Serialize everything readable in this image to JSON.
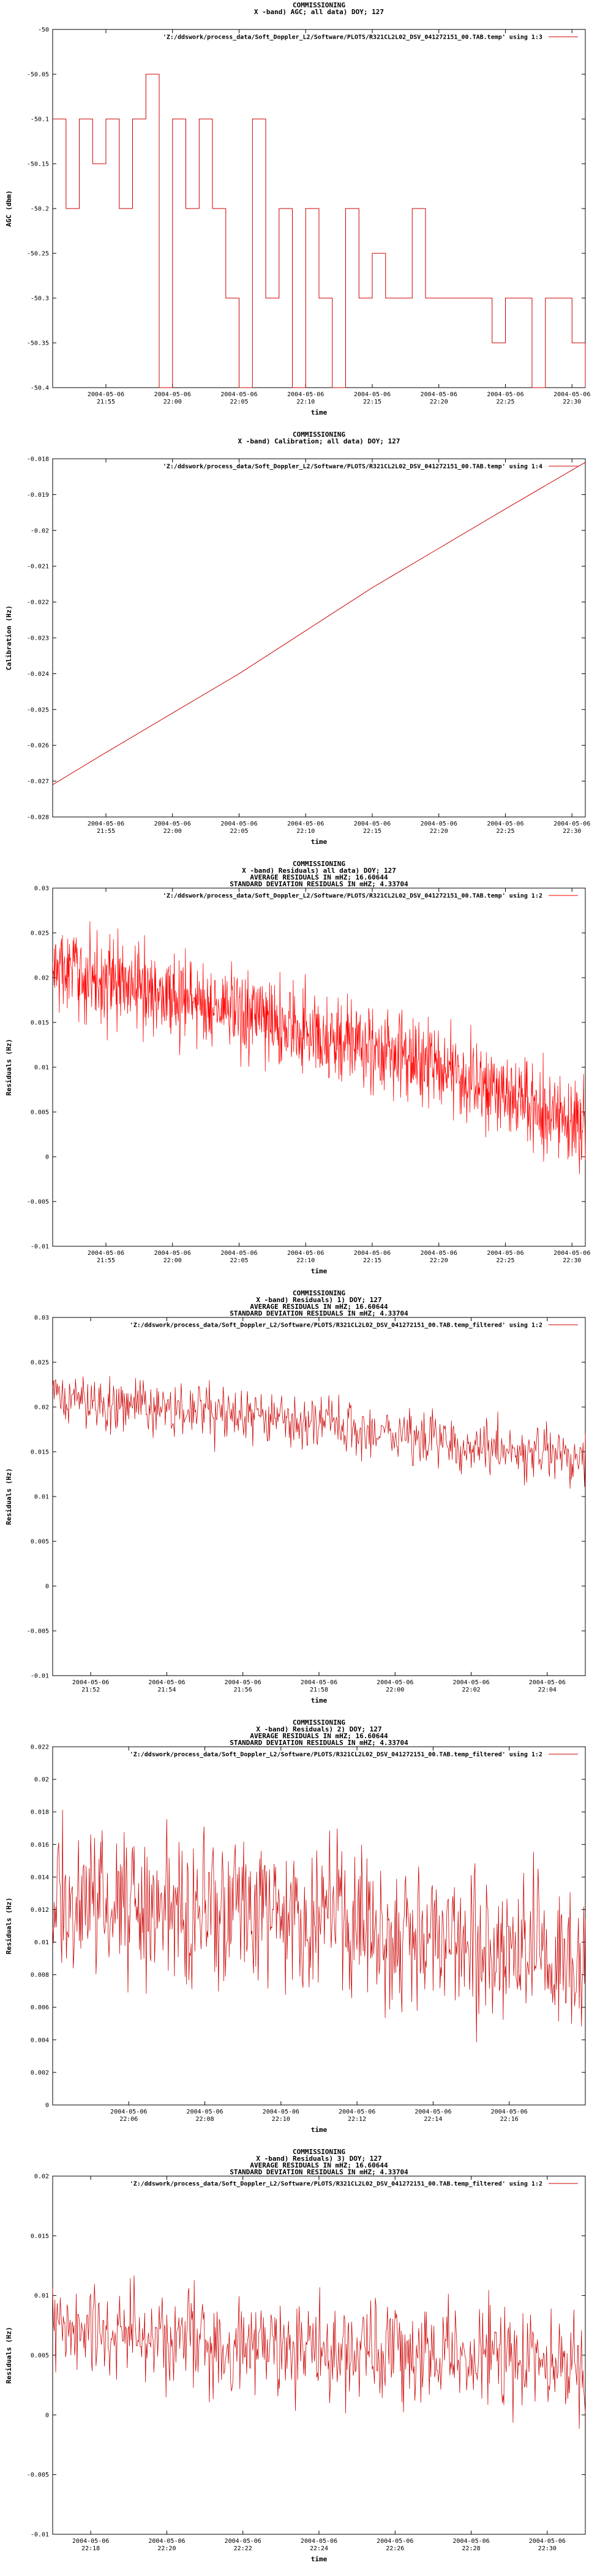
{
  "chart_data": [
    {
      "type": "line",
      "title": [
        "COMMISSIONING",
        "X -band) AGC; all data) DOY; 127"
      ],
      "xlabel": "time",
      "ylabel": "AGC (dbm)",
      "ylim": [
        -50.4,
        -50
      ],
      "yticks": [
        "-50",
        "-50.05",
        "-50.1",
        "-50.15",
        "-50.2",
        "-50.25",
        "-50.3",
        "-50.35",
        "-50.4"
      ],
      "xlim": [
        "2004-05-06 21:51",
        "2004-05-06 22:31"
      ],
      "xticks": [
        {
          "t": "2004-05-06 21:55",
          "l1": "2004-05-06",
          "l2": "21:55"
        },
        {
          "t": "2004-05-06 22:00",
          "l1": "2004-05-06",
          "l2": "22:00"
        },
        {
          "t": "2004-05-06 22:05",
          "l1": "2004-05-06",
          "l2": "22:05"
        },
        {
          "t": "2004-05-06 22:10",
          "l1": "2004-05-06",
          "l2": "22:10"
        },
        {
          "t": "2004-05-06 22:15",
          "l1": "2004-05-06",
          "l2": "22:15"
        },
        {
          "t": "2004-05-06 22:20",
          "l1": "2004-05-06",
          "l2": "22:20"
        },
        {
          "t": "2004-05-06 22:25",
          "l1": "2004-05-06",
          "l2": "22:25"
        },
        {
          "t": "2004-05-06 22:30",
          "l1": "2004-05-06",
          "l2": "22:30"
        }
      ],
      "series": [
        {
          "name": "'Z:/ddswork/process_data/Soft_Doppler_L2/Software/PLOTS/R321CL2L02_DSV_041272151_00.TAB.temp' using 1:3",
          "color": "#cc0000",
          "step": true,
          "x": [
            "2004-05-06 21:51",
            "2004-05-06 21:52",
            "2004-05-06 21:53",
            "2004-05-06 21:54",
            "2004-05-06 21:55",
            "2004-05-06 21:56",
            "2004-05-06 21:57",
            "2004-05-06 21:58",
            "2004-05-06 21:59",
            "2004-05-06 22:00",
            "2004-05-06 22:01",
            "2004-05-06 22:02",
            "2004-05-06 22:03",
            "2004-05-06 22:04",
            "2004-05-06 22:05",
            "2004-05-06 22:06",
            "2004-05-06 22:07",
            "2004-05-06 22:08",
            "2004-05-06 22:09",
            "2004-05-06 22:10",
            "2004-05-06 22:11",
            "2004-05-06 22:12",
            "2004-05-06 22:13",
            "2004-05-06 22:14",
            "2004-05-06 22:15",
            "2004-05-06 22:16",
            "2004-05-06 22:17",
            "2004-05-06 22:18",
            "2004-05-06 22:19",
            "2004-05-06 22:20",
            "2004-05-06 22:21",
            "2004-05-06 22:22",
            "2004-05-06 22:23",
            "2004-05-06 22:24",
            "2004-05-06 22:25",
            "2004-05-06 22:26",
            "2004-05-06 22:27",
            "2004-05-06 22:28",
            "2004-05-06 22:29",
            "2004-05-06 22:30",
            "2004-05-06 22:31"
          ],
          "y": [
            -50.1,
            -50.2,
            -50.1,
            -50.15,
            -50.1,
            -50.2,
            -50.1,
            -50.05,
            -50.4,
            -50.1,
            -50.2,
            -50.1,
            -50.2,
            -50.3,
            -50.4,
            -50.1,
            -50.3,
            -50.2,
            -50.4,
            -50.2,
            -50.3,
            -50.4,
            -50.2,
            -50.3,
            -50.25,
            -50.3,
            -50.3,
            -50.2,
            -50.3,
            -50.3,
            -50.3,
            -50.3,
            -50.3,
            -50.35,
            -50.3,
            -50.3,
            -50.4,
            -50.3,
            -50.3,
            -50.35,
            -50.4
          ]
        }
      ]
    },
    {
      "type": "line",
      "title": [
        "COMMISSIONING",
        "X -band) Calibration; all data) DOY; 127"
      ],
      "xlabel": "time",
      "ylabel": "Calibration (Hz)",
      "ylim": [
        -0.028,
        -0.018
      ],
      "yticks": [
        "-0.018",
        "-0.019",
        "-0.02",
        "-0.021",
        "-0.022",
        "-0.023",
        "-0.024",
        "-0.025",
        "-0.026",
        "-0.027",
        "-0.028"
      ],
      "xlim": [
        "2004-05-06 21:51",
        "2004-05-06 22:31"
      ],
      "xticks": [
        {
          "t": "2004-05-06 21:55",
          "l1": "2004-05-06",
          "l2": "21:55"
        },
        {
          "t": "2004-05-06 22:00",
          "l1": "2004-05-06",
          "l2": "22:00"
        },
        {
          "t": "2004-05-06 22:05",
          "l1": "2004-05-06",
          "l2": "22:05"
        },
        {
          "t": "2004-05-06 22:10",
          "l1": "2004-05-06",
          "l2": "22:10"
        },
        {
          "t": "2004-05-06 22:15",
          "l1": "2004-05-06",
          "l2": "22:15"
        },
        {
          "t": "2004-05-06 22:20",
          "l1": "2004-05-06",
          "l2": "22:20"
        },
        {
          "t": "2004-05-06 22:25",
          "l1": "2004-05-06",
          "l2": "22:25"
        },
        {
          "t": "2004-05-06 22:30",
          "l1": "2004-05-06",
          "l2": "22:30"
        }
      ],
      "series": [
        {
          "name": "'Z:/ddswork/process_data/Soft_Doppler_L2/Software/PLOTS/R321CL2L02_DSV_041272151_00.TAB.temp' using 1:4",
          "color": "#cc0000",
          "step": false,
          "x": [
            "2004-05-06 21:51",
            "2004-05-06 21:55",
            "2004-05-06 22:00",
            "2004-05-06 22:05",
            "2004-05-06 22:10",
            "2004-05-06 22:15",
            "2004-05-06 22:20",
            "2004-05-06 22:25",
            "2004-05-06 22:31"
          ],
          "y": [
            -0.0271,
            -0.0262,
            -0.0251,
            -0.024,
            -0.0228,
            -0.0216,
            -0.0205,
            -0.0194,
            -0.0181
          ]
        }
      ]
    },
    {
      "type": "line",
      "title": [
        "COMMISSIONING",
        "X -band) Residuals) all data) DOY; 127",
        "AVERAGE RESIDUALS IN mHZ; 16.60644",
        "STANDARD DEVIATION RESIDUALS IN mHZ; 4.33704"
      ],
      "xlabel": "time",
      "ylabel": "Residuals (Hz)",
      "ylim": [
        -0.01,
        0.03
      ],
      "yticks": [
        "0.03",
        "0.025",
        "0.02",
        "0.015",
        "0.01",
        "0.005",
        "0",
        "-0.005",
        "-0.01"
      ],
      "xlim": [
        "2004-05-06 21:51",
        "2004-05-06 22:31"
      ],
      "xticks": [
        {
          "t": "2004-05-06 21:55",
          "l1": "2004-05-06",
          "l2": "21:55"
        },
        {
          "t": "2004-05-06 22:00",
          "l1": "2004-05-06",
          "l2": "22:00"
        },
        {
          "t": "2004-05-06 22:05",
          "l1": "2004-05-06",
          "l2": "22:05"
        },
        {
          "t": "2004-05-06 22:10",
          "l1": "2004-05-06",
          "l2": "22:10"
        },
        {
          "t": "2004-05-06 22:15",
          "l1": "2004-05-06",
          "l2": "22:15"
        },
        {
          "t": "2004-05-06 22:20",
          "l1": "2004-05-06",
          "l2": "22:20"
        },
        {
          "t": "2004-05-06 22:25",
          "l1": "2004-05-06",
          "l2": "22:25"
        },
        {
          "t": "2004-05-06 22:30",
          "l1": "2004-05-06",
          "l2": "22:30"
        }
      ],
      "series": [
        {
          "name": "'Z:/ddswork/process_data/Soft_Doppler_L2/Software/PLOTS/R321CL2L02_DSV_041272151_00.TAB.temp' using 1:2",
          "color": "#ff0000",
          "noise": true,
          "samples": 1200,
          "spread": 0.0045,
          "x": [
            "2004-05-06 21:51",
            "2004-05-06 22:00",
            "2004-05-06 22:10",
            "2004-05-06 22:20",
            "2004-05-06 22:31"
          ],
          "y": [
            0.021,
            0.018,
            0.014,
            0.01,
            0.003
          ]
        }
      ]
    },
    {
      "type": "line",
      "title": [
        "COMMISSIONING",
        "X -band) Residuals) 1) DOY; 127",
        "AVERAGE RESIDUALS IN mHZ; 16.60644",
        "STANDARD DEVIATION RESIDUALS IN mHZ; 4.33704"
      ],
      "xlabel": "time",
      "ylabel": "Residuals (Hz)",
      "ylim": [
        -0.01,
        0.03
      ],
      "yticks": [
        "0.03",
        "0.025",
        "0.02",
        "0.015",
        "0.01",
        "0.005",
        "0",
        "-0.005",
        "-0.01"
      ],
      "xlim": [
        "2004-05-06 21:51",
        "2004-05-06 22:05"
      ],
      "xticks": [
        {
          "t": "2004-05-06 21:52",
          "l1": "2004-05-06",
          "l2": "21:52"
        },
        {
          "t": "2004-05-06 21:54",
          "l1": "2004-05-06",
          "l2": "21:54"
        },
        {
          "t": "2004-05-06 21:56",
          "l1": "2004-05-06",
          "l2": "21:56"
        },
        {
          "t": "2004-05-06 21:58",
          "l1": "2004-05-06",
          "l2": "21:58"
        },
        {
          "t": "2004-05-06 22:00",
          "l1": "2004-05-06",
          "l2": "22:00"
        },
        {
          "t": "2004-05-06 22:02",
          "l1": "2004-05-06",
          "l2": "22:02"
        },
        {
          "t": "2004-05-06 22:04",
          "l1": "2004-05-06",
          "l2": "22:04"
        }
      ],
      "series": [
        {
          "name": "'Z:/ddswork/process_data/Soft_Doppler_L2/Software/PLOTS/R321CL2L02_DSV_041272151_00.TAB.temp_filtered' using 1:2",
          "color": "#cc0000",
          "noise": true,
          "samples": 700,
          "spread": 0.0028,
          "x": [
            "2004-05-06 21:51",
            "2004-05-06 21:56",
            "2004-05-06 22:00",
            "2004-05-06 22:05"
          ],
          "y": [
            0.021,
            0.019,
            0.017,
            0.014
          ]
        }
      ]
    },
    {
      "type": "line",
      "title": [
        "COMMISSIONING",
        "X -band) Residuals) 2) DOY; 127",
        "AVERAGE RESIDUALS IN mHZ; 16.60644",
        "STANDARD DEVIATION RESIDUALS IN mHZ; 4.33704"
      ],
      "xlabel": "time",
      "ylabel": "Residuals (Hz)",
      "ylim": [
        0,
        0.022
      ],
      "yticks": [
        "0.022",
        "0.02",
        "0.018",
        "0.016",
        "0.014",
        "0.012",
        "0.01",
        "0.008",
        "0.006",
        "0.004",
        "0.002",
        "0"
      ],
      "xlim": [
        "2004-05-06 22:04",
        "2004-05-06 22:18"
      ],
      "xticks": [
        {
          "t": "2004-05-06 22:06",
          "l1": "2004-05-06",
          "l2": "22:06"
        },
        {
          "t": "2004-05-06 22:08",
          "l1": "2004-05-06",
          "l2": "22:08"
        },
        {
          "t": "2004-05-06 22:10",
          "l1": "2004-05-06",
          "l2": "22:10"
        },
        {
          "t": "2004-05-06 22:12",
          "l1": "2004-05-06",
          "l2": "22:12"
        },
        {
          "t": "2004-05-06 22:14",
          "l1": "2004-05-06",
          "l2": "22:14"
        },
        {
          "t": "2004-05-06 22:16",
          "l1": "2004-05-06",
          "l2": "22:16"
        }
      ],
      "series": [
        {
          "name": "'Z:/ddswork/process_data/Soft_Doppler_L2/Software/PLOTS/R321CL2L02_DSV_041272151_00.TAB.temp_filtered' using 1:2",
          "color": "#cc0000",
          "noise": true,
          "samples": 700,
          "spread": 0.0042,
          "x": [
            "2004-05-06 22:04",
            "2004-05-06 22:10",
            "2004-05-06 22:14",
            "2004-05-06 22:18"
          ],
          "y": [
            0.0125,
            0.012,
            0.0105,
            0.009
          ]
        }
      ]
    },
    {
      "type": "line",
      "title": [
        "COMMISSIONING",
        "X -band) Residuals) 3) DOY; 127",
        "AVERAGE RESIDUALS IN mHZ; 16.60644",
        "STANDARD DEVIATION RESIDUALS IN mHZ; 4.33704"
      ],
      "xlabel": "time",
      "ylabel": "Residuals (Hz)",
      "ylim": [
        -0.01,
        0.02
      ],
      "yticks": [
        "0.02",
        "0.015",
        "0.01",
        "0.005",
        "0",
        "-0.005",
        "-0.01"
      ],
      "xlim": [
        "2004-05-06 22:17",
        "2004-05-06 22:31"
      ],
      "xticks": [
        {
          "t": "2004-05-06 22:18",
          "l1": "2004-05-06",
          "l2": "22:18"
        },
        {
          "t": "2004-05-06 22:20",
          "l1": "2004-05-06",
          "l2": "22:20"
        },
        {
          "t": "2004-05-06 22:22",
          "l1": "2004-05-06",
          "l2": "22:22"
        },
        {
          "t": "2004-05-06 22:24",
          "l1": "2004-05-06",
          "l2": "22:24"
        },
        {
          "t": "2004-05-06 22:26",
          "l1": "2004-05-06",
          "l2": "22:26"
        },
        {
          "t": "2004-05-06 22:28",
          "l1": "2004-05-06",
          "l2": "22:28"
        },
        {
          "t": "2004-05-06 22:30",
          "l1": "2004-05-06",
          "l2": "22:30"
        }
      ],
      "series": [
        {
          "name": "'Z:/ddswork/process_data/Soft_Doppler_L2/Software/PLOTS/R321CL2L02_DSV_041272151_00.TAB.temp_filtered' using 1:2",
          "color": "#cc0000",
          "noise": true,
          "samples": 700,
          "spread": 0.0038,
          "x": [
            "2004-05-06 22:17",
            "2004-05-06 22:22",
            "2004-05-06 22:27",
            "2004-05-06 22:31"
          ],
          "y": [
            0.007,
            0.006,
            0.005,
            0.004
          ]
        }
      ]
    }
  ]
}
